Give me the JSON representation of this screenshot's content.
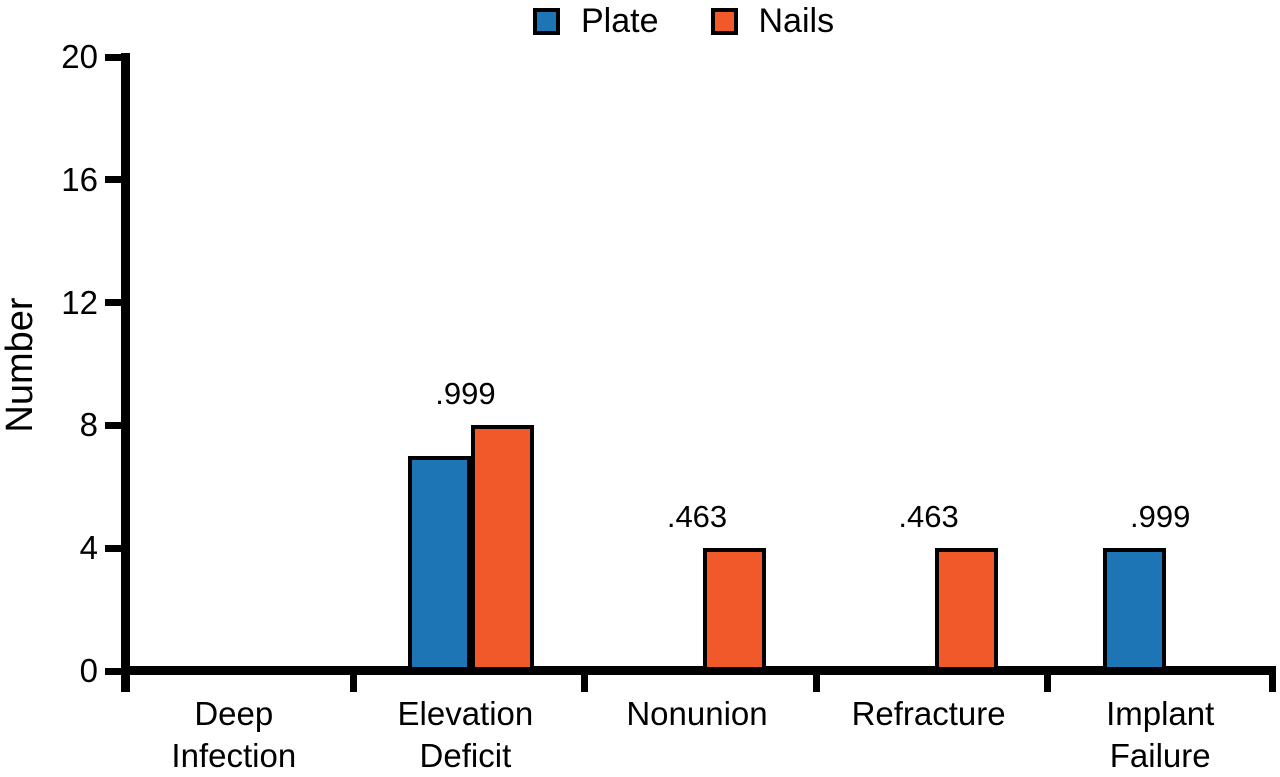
{
  "figure_title": "",
  "legend": {
    "items": [
      {
        "label": "Plate",
        "color": "#1E75B5"
      },
      {
        "label": "Nails",
        "color": "#F1592A"
      }
    ]
  },
  "chart_data": {
    "type": "bar",
    "title": "",
    "xlabel": "",
    "ylabel": "Number",
    "ylim": [
      0,
      20
    ],
    "y_ticks": [
      0,
      4,
      8,
      12,
      16,
      20
    ],
    "grid": false,
    "legend_position": "top-center",
    "categories": [
      "Deep Infection",
      "Elevation Deficit",
      "Nonunion",
      "Refracture",
      "Implant Failure"
    ],
    "series": [
      {
        "name": "Plate",
        "color": "#1E75B5",
        "values": [
          0,
          7,
          0,
          0,
          4
        ]
      },
      {
        "name": "Nails",
        "color": "#F1592A",
        "values": [
          0,
          8,
          4,
          4,
          0
        ]
      }
    ],
    "annotations": [
      "",
      ".999",
      ".463",
      ".463",
      ".999"
    ],
    "bar_outline_color": "#000000",
    "axis_color": "#000000"
  }
}
